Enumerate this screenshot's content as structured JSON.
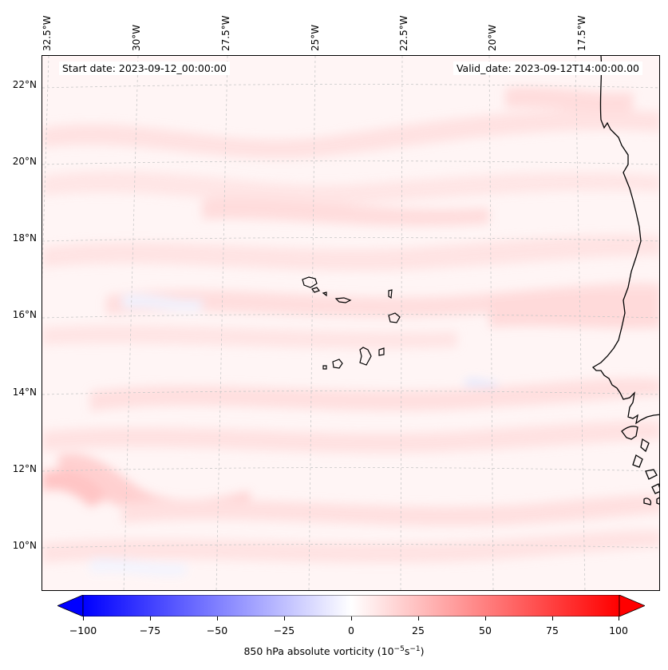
{
  "map": {
    "start_date": "Start date: 2023-09-12_00:00:00",
    "valid_date": "Valid_date: 2023-09-12T14:00:00.00",
    "lon_labels": [
      "32.5°W",
      "30°W",
      "27.5°W",
      "25°W",
      "22.5°W",
      "20°W",
      "17.5°W"
    ],
    "lat_labels": [
      "22°N",
      "20°N",
      "18°N",
      "16°N",
      "14°N",
      "12°N",
      "10°N"
    ],
    "land_color": "#000000",
    "grid_color": "#c8c8c8"
  },
  "colorbar": {
    "ticks": [
      "−100",
      "−75",
      "−50",
      "−25",
      "0",
      "25",
      "50",
      "75",
      "100"
    ],
    "label_main": "850 hPa absolute vorticity (10",
    "label_exp1": "−5",
    "label_mid": "s",
    "label_exp2": "−1",
    "label_end": ")",
    "min_color": "#0000ff",
    "mid_color": "#ffffff",
    "max_color": "#ff0000"
  }
}
